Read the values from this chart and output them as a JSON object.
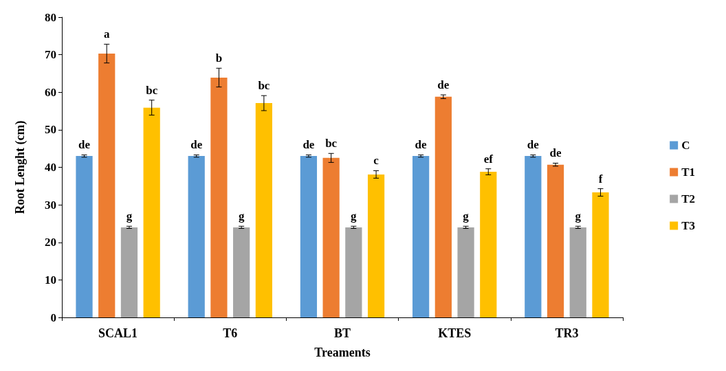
{
  "chart_data": {
    "type": "bar",
    "xlabel": "Treaments",
    "ylabel": "Root Lenght (cm)",
    "categories": [
      "SCAL1",
      "T6",
      "BT",
      "KTES",
      "TR3"
    ],
    "series": [
      {
        "name": "C",
        "color": "#5b9bd5",
        "values": [
          43,
          43,
          43,
          43,
          43
        ],
        "errors": [
          0.3,
          0.3,
          0.3,
          0.3,
          0.3
        ],
        "value_labels": [
          "de",
          "de",
          "de",
          "de",
          "de"
        ]
      },
      {
        "name": "T1",
        "color": "#ed7d31",
        "values": [
          70.3,
          63.9,
          42.5,
          58.8,
          40.7
        ],
        "errors": [
          2.5,
          2.5,
          1.2,
          0.5,
          0.4
        ],
        "value_labels": [
          "a",
          "b",
          "bc",
          "de",
          "de"
        ]
      },
      {
        "name": "T2",
        "color": "#a5a5a5",
        "values": [
          24,
          24,
          24,
          24,
          24
        ],
        "errors": [
          0.3,
          0.3,
          0.3,
          0.3,
          0.3
        ],
        "value_labels": [
          "g",
          "g",
          "g",
          "g",
          "g"
        ]
      },
      {
        "name": "T3",
        "color": "#ffc000",
        "values": [
          55.9,
          57.1,
          38.1,
          38.8,
          33.3
        ],
        "errors": [
          2,
          2,
          1,
          0.8,
          1
        ],
        "value_labels": [
          "bc",
          "bc",
          "c",
          "ef",
          "f"
        ]
      }
    ],
    "ylim": [
      0,
      80
    ],
    "yticks": [
      0,
      10,
      20,
      30,
      40,
      50,
      60,
      70,
      80
    ],
    "grid": false,
    "legend": "right"
  }
}
